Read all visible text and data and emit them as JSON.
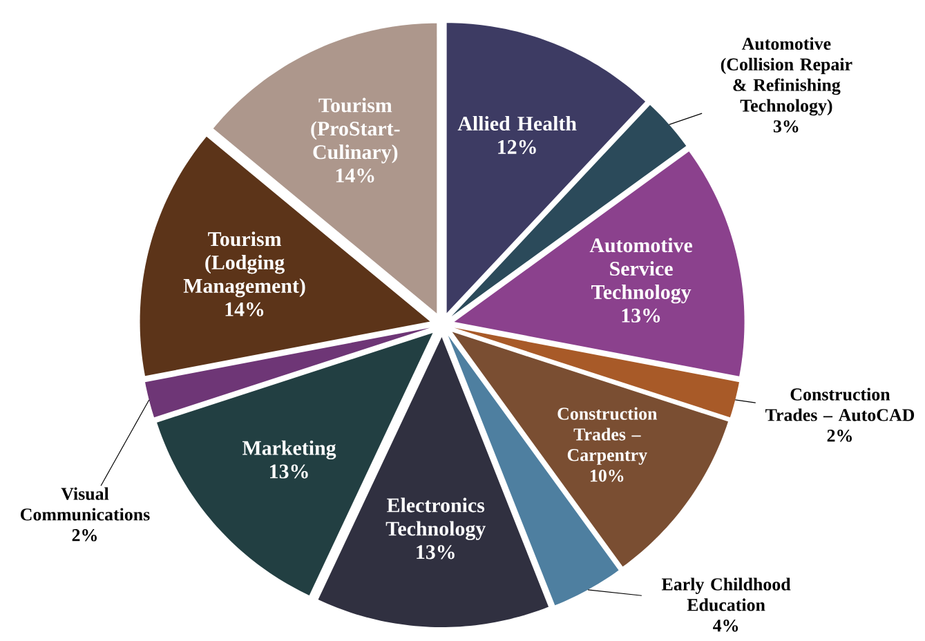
{
  "chart_data": {
    "type": "pie",
    "categories": [
      "Allied Health",
      "Automotive (Collision Repair & Refinishing Technology)",
      "Automotive Service Technology",
      "Construction Trades – AutoCAD",
      "Construction Trades – Carpentry",
      "Early Childhood Education",
      "Electronics Technology",
      "Marketing",
      "Visual Communications",
      "Tourism (Lodging Management)",
      "Tourism (ProStart-Culinary)"
    ],
    "values": [
      12,
      3,
      13,
      2,
      10,
      4,
      13,
      13,
      2,
      14,
      14
    ],
    "value_labels": [
      "12%",
      "3%",
      "13%",
      "2%",
      "10%",
      "4%",
      "13%",
      "13%",
      "2%",
      "14%",
      "14%"
    ],
    "colors": [
      "#3d3b63",
      "#2b4a5a",
      "#8b418d",
      "#a85a28",
      "#7a4e32",
      "#4e7fa0",
      "#303040",
      "#223f42",
      "#6e3676",
      "#5c3419",
      "#ad978c"
    ]
  }
}
